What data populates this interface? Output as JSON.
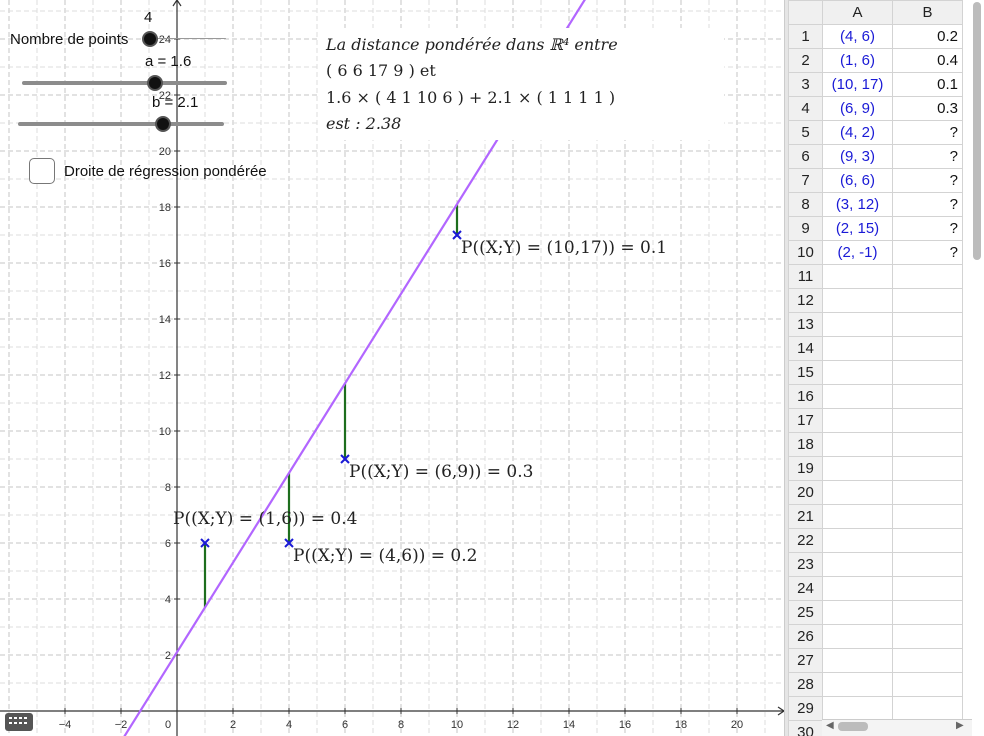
{
  "sliders": {
    "points": {
      "label": "Nombre de points",
      "value": "4"
    },
    "a": {
      "label": "a = 1.6",
      "value": 1.6
    },
    "b": {
      "label": "b = 2.1",
      "value": 2.1
    }
  },
  "checkbox": {
    "label": "Droite de régression pondérée",
    "checked": false
  },
  "textbox": {
    "line1": "La distance pondérée dans ℝ⁴ entre",
    "line2": "( 6   6   17   9 ) et",
    "line3": "1.6 × ( 4   1   10   6 ) + 2.1 × ( 1   1   1   1 )",
    "line4": "est : 2.38"
  },
  "graph": {
    "x_ticks": [
      "−4",
      "−2",
      "0",
      "2",
      "4",
      "6",
      "8",
      "10",
      "12",
      "14",
      "16",
      "18",
      "20"
    ],
    "y_ticks": [
      "2",
      "4",
      "6",
      "8",
      "10",
      "12",
      "14",
      "16",
      "18",
      "20",
      "22",
      "24"
    ],
    "line": {
      "slope": 1.6,
      "intercept": 2.1,
      "color": "#b266ff"
    },
    "points": [
      {
        "x": 4,
        "y": 6,
        "label": "P((X;Y) = (4,6)) = 0.2"
      },
      {
        "x": 1,
        "y": 6,
        "label": "P((X;Y) = (1,6)) = 0.4"
      },
      {
        "x": 10,
        "y": 17,
        "label": "P((X;Y) = (10,17)) = 0.1"
      },
      {
        "x": 6,
        "y": 9,
        "label": "P((X;Y) = (6,9)) = 0.3"
      }
    ],
    "point_color": "#1a1ad6",
    "residual_color": "#1e6e1e"
  },
  "spreadsheet": {
    "columns": [
      "A",
      "B"
    ],
    "rows": [
      {
        "n": "1",
        "a": "(4, 6)",
        "b": "0.2"
      },
      {
        "n": "2",
        "a": "(1, 6)",
        "b": "0.4"
      },
      {
        "n": "3",
        "a": "(10, 17)",
        "b": "0.1"
      },
      {
        "n": "4",
        "a": "(6, 9)",
        "b": "0.3"
      },
      {
        "n": "5",
        "a": "(4, 2)",
        "b": "?"
      },
      {
        "n": "6",
        "a": "(9, 3)",
        "b": "?"
      },
      {
        "n": "7",
        "a": "(6, 6)",
        "b": "?"
      },
      {
        "n": "8",
        "a": "(3, 12)",
        "b": "?"
      },
      {
        "n": "9",
        "a": "(2, 15)",
        "b": "?"
      },
      {
        "n": "10",
        "a": "(2, -1)",
        "b": "?"
      },
      {
        "n": "11",
        "a": "",
        "b": ""
      },
      {
        "n": "12",
        "a": "",
        "b": ""
      },
      {
        "n": "13",
        "a": "",
        "b": ""
      },
      {
        "n": "14",
        "a": "",
        "b": ""
      },
      {
        "n": "15",
        "a": "",
        "b": ""
      },
      {
        "n": "16",
        "a": "",
        "b": ""
      },
      {
        "n": "17",
        "a": "",
        "b": ""
      },
      {
        "n": "18",
        "a": "",
        "b": ""
      },
      {
        "n": "19",
        "a": "",
        "b": ""
      },
      {
        "n": "20",
        "a": "",
        "b": ""
      },
      {
        "n": "21",
        "a": "",
        "b": ""
      },
      {
        "n": "22",
        "a": "",
        "b": ""
      },
      {
        "n": "23",
        "a": "",
        "b": ""
      },
      {
        "n": "24",
        "a": "",
        "b": ""
      },
      {
        "n": "25",
        "a": "",
        "b": ""
      },
      {
        "n": "26",
        "a": "",
        "b": ""
      },
      {
        "n": "27",
        "a": "",
        "b": ""
      },
      {
        "n": "28",
        "a": "",
        "b": ""
      },
      {
        "n": "29",
        "a": "",
        "b": ""
      },
      {
        "n": "30",
        "a": "",
        "b": ""
      }
    ]
  },
  "icons": {
    "keyboard": "keyboard-icon"
  }
}
